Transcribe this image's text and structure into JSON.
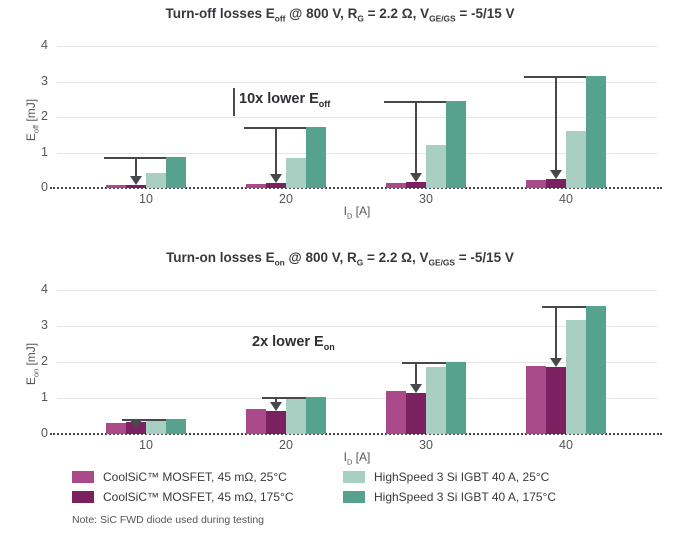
{
  "colors": {
    "mosfet25": "#AA4A8A",
    "mosfet175": "#7B2161",
    "igbt25": "#A9CFC3",
    "igbt175": "#57A28E",
    "grid": "#E6E6E8",
    "arrow": "#47484B",
    "title_text": "#39383D",
    "tick_text": "#55565A"
  },
  "legend": {
    "items": [
      {
        "label": "CoolSiC™ MOSFET, 45 mΩ, 25°C",
        "color": "mosfet25"
      },
      {
        "label": "CoolSiC™ MOSFET, 45 mΩ, 175°C",
        "color": "mosfet175"
      },
      {
        "label": "HighSpeed 3 Si IGBT 40 A, 25°C",
        "color": "igbt25"
      },
      {
        "label": "HighSpeed 3 Si IGBT 40 A, 175°C",
        "color": "igbt175"
      }
    ]
  },
  "note": "Note: SiC FWD diode used during testing",
  "chart_data": [
    {
      "type": "bar",
      "title": "Turn-off losses Eoff @ 800 V, RG = 2.2 Ω, VGE/GS = -5/15 V",
      "title_parts": [
        {
          "t": "Turn-off losses E"
        },
        {
          "t": "off",
          "sub": true
        },
        {
          "t": " @ 800 V, R"
        },
        {
          "t": "G",
          "sub": true
        },
        {
          "t": " = 2.2 Ω, V"
        },
        {
          "t": "GE/GS",
          "sub": true
        },
        {
          "t": " = -5/15 V"
        }
      ],
      "ylabel": "Eoff [mJ]",
      "ylabel_parts": [
        {
          "t": "E"
        },
        {
          "t": "off",
          "sub": true
        },
        {
          "t": " [mJ]"
        }
      ],
      "xlabel": "ID [A]",
      "xlabel_parts": [
        {
          "t": "I"
        },
        {
          "t": "D",
          "sub": true
        },
        {
          "t": " [A]"
        }
      ],
      "annotation": "10x lower Eoff",
      "annotation_parts": [
        {
          "t": "10x lower E"
        },
        {
          "t": "off",
          "sub": true
        }
      ],
      "categories": [
        "10",
        "20",
        "30",
        "40"
      ],
      "ylim": [
        0,
        4
      ],
      "yticks": [
        0,
        1,
        2,
        3,
        4
      ],
      "grid": true,
      "legend_position": "below-figure",
      "series": [
        {
          "name": "CoolSiC™ MOSFET, 45 mΩ, 25°C",
          "color": "mosfet25",
          "values": [
            0.08,
            0.1,
            0.15,
            0.22
          ]
        },
        {
          "name": "CoolSiC™ MOSFET, 45 mΩ, 175°C",
          "color": "mosfet175",
          "values": [
            0.09,
            0.13,
            0.18,
            0.26
          ]
        },
        {
          "name": "HighSpeed 3 Si IGBT 40 A, 25°C",
          "color": "igbt25",
          "values": [
            0.42,
            0.85,
            1.21,
            1.6
          ]
        },
        {
          "name": "HighSpeed 3 Si IGBT 40 A, 175°C",
          "color": "igbt175",
          "values": [
            0.88,
            1.72,
            2.45,
            3.15
          ]
        }
      ],
      "arrows": {
        "from_series": 3,
        "to_series": 1,
        "note": "reduction arrow drawn in every category group"
      }
    },
    {
      "type": "bar",
      "title": "Turn-on losses Eon @ 800 V, RG = 2.2 Ω, VGE/GS = -5/15 V",
      "title_parts": [
        {
          "t": "Turn-on losses E"
        },
        {
          "t": "on",
          "sub": true
        },
        {
          "t": " @ 800 V, R"
        },
        {
          "t": "G",
          "sub": true
        },
        {
          "t": " = 2.2 Ω, V"
        },
        {
          "t": "GE/GS",
          "sub": true
        },
        {
          "t": " = -5/15 V"
        }
      ],
      "ylabel": "Eon [mJ]",
      "ylabel_parts": [
        {
          "t": "E"
        },
        {
          "t": "on",
          "sub": true
        },
        {
          "t": " [mJ]"
        }
      ],
      "xlabel": "ID [A]",
      "xlabel_parts": [
        {
          "t": "I"
        },
        {
          "t": "D",
          "sub": true
        },
        {
          "t": " [A]"
        }
      ],
      "annotation": "2x lower Eon",
      "annotation_parts": [
        {
          "t": "2x lower E"
        },
        {
          "t": "on",
          "sub": true
        }
      ],
      "categories": [
        "10",
        "20",
        "30",
        "40"
      ],
      "ylim": [
        0,
        4
      ],
      "yticks": [
        0,
        1,
        2,
        3,
        4
      ],
      "grid": true,
      "legend_position": "below-figure",
      "series": [
        {
          "name": "CoolSiC™ MOSFET, 45 mΩ, 25°C",
          "color": "mosfet25",
          "values": [
            0.3,
            0.7,
            1.2,
            1.9
          ]
        },
        {
          "name": "CoolSiC™ MOSFET, 45 mΩ, 175°C",
          "color": "mosfet175",
          "values": [
            0.32,
            0.65,
            1.14,
            1.85
          ]
        },
        {
          "name": "HighSpeed 3 Si IGBT 40 A, 25°C",
          "color": "igbt25",
          "values": [
            0.38,
            0.97,
            1.86,
            3.17
          ]
        },
        {
          "name": "HighSpeed 3 Si IGBT 40 A, 175°C",
          "color": "igbt175",
          "values": [
            0.41,
            1.02,
            2.0,
            3.55
          ]
        }
      ],
      "arrows": {
        "from_series": 3,
        "to_series": 1,
        "note": "reduction arrow drawn in every category group"
      }
    }
  ]
}
